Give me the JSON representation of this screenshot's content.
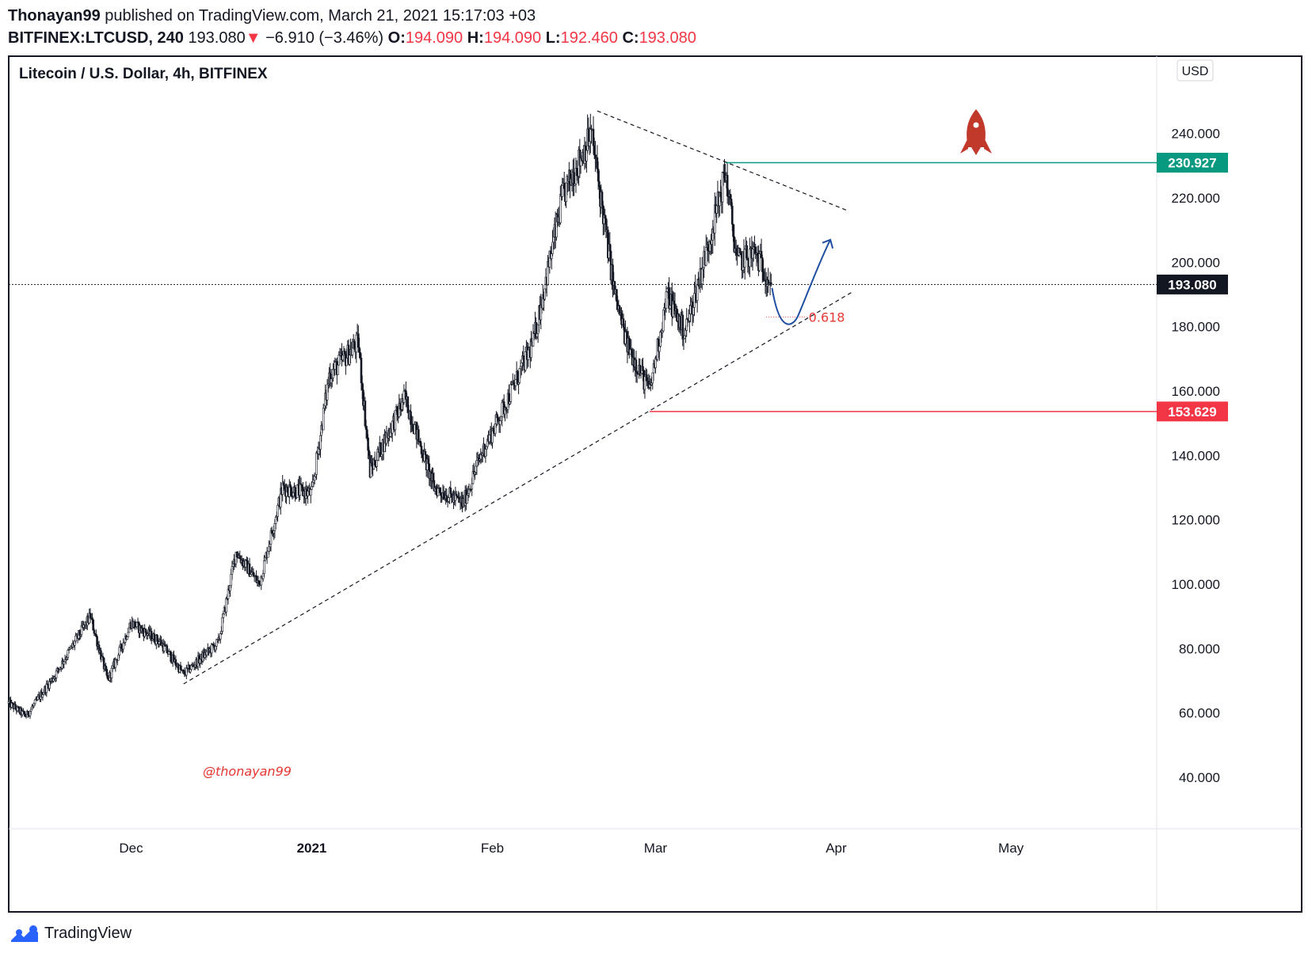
{
  "header": {
    "author": "Thonayan99",
    "published_text": "published on TradingView.com, March 21, 2021 15:17:03 +03",
    "symbol": "BITFINEX:LTCUSD, 240",
    "price": "193.080",
    "change_arrow": "▼",
    "change": "−6.910 (−3.46%)",
    "o_label": "O:",
    "o_value": "194.090",
    "h_label": "H:",
    "h_value": "194.090",
    "l_label": "L:",
    "l_value": "192.460",
    "c_label": "C:",
    "c_value": "193.080"
  },
  "footer": {
    "brand": "TradingView"
  },
  "colors": {
    "candle": "#131722",
    "green_line": "#089981",
    "red_line": "#f23645",
    "fib_red": "#e53935",
    "arrow_blue": "#1e4fa0",
    "rocket": "#c0392b"
  },
  "chart_data": {
    "type": "candlestick",
    "title": "Litecoin / U.S. Dollar, 4h, BITFINEX",
    "currency_label": "USD",
    "x_tick_labels": [
      "Dec",
      "2021",
      "Feb",
      "Mar",
      "Apr",
      "May"
    ],
    "y_tick_labels": [
      "240.000",
      "220.000",
      "200.000",
      "180.000",
      "160.000",
      "140.000",
      "120.000",
      "100.000",
      "80.000",
      "60.000",
      "40.000"
    ],
    "y_ticks": [
      240,
      220,
      200,
      180,
      160,
      140,
      120,
      100,
      80,
      60,
      40
    ],
    "ylim": [
      24,
      264
    ],
    "xlim": [
      "2020-11-10",
      "2021-05-26"
    ],
    "x_ticks": [
      "2020-12-01",
      "2021-01-01",
      "2021-02-01",
      "2021-03-01",
      "2021-04-01",
      "2021-05-01"
    ],
    "price_anchors": [
      {
        "date": "2020-11-10",
        "price": 63
      },
      {
        "date": "2020-11-13",
        "price": 59
      },
      {
        "date": "2020-11-18",
        "price": 72
      },
      {
        "date": "2020-11-24",
        "price": 90
      },
      {
        "date": "2020-11-27",
        "price": 70
      },
      {
        "date": "2020-12-01",
        "price": 88
      },
      {
        "date": "2020-12-06",
        "price": 82
      },
      {
        "date": "2020-12-10",
        "price": 72
      },
      {
        "date": "2020-12-16",
        "price": 82
      },
      {
        "date": "2020-12-19",
        "price": 110
      },
      {
        "date": "2020-12-23",
        "price": 100
      },
      {
        "date": "2020-12-27",
        "price": 130
      },
      {
        "date": "2021-01-01",
        "price": 128
      },
      {
        "date": "2021-01-04",
        "price": 165
      },
      {
        "date": "2021-01-09",
        "price": 175
      },
      {
        "date": "2021-01-11",
        "price": 135
      },
      {
        "date": "2021-01-17",
        "price": 158
      },
      {
        "date": "2021-01-22",
        "price": 130
      },
      {
        "date": "2021-01-27",
        "price": 125
      },
      {
        "date": "2021-01-30",
        "price": 140
      },
      {
        "date": "2021-02-03",
        "price": 155
      },
      {
        "date": "2021-02-08",
        "price": 175
      },
      {
        "date": "2021-02-13",
        "price": 220
      },
      {
        "date": "2021-02-18",
        "price": 240
      },
      {
        "date": "2021-02-22",
        "price": 190
      },
      {
        "date": "2021-02-24",
        "price": 175
      },
      {
        "date": "2021-02-28",
        "price": 160
      },
      {
        "date": "2021-03-03",
        "price": 190
      },
      {
        "date": "2021-03-06",
        "price": 178
      },
      {
        "date": "2021-03-10",
        "price": 205
      },
      {
        "date": "2021-03-13",
        "price": 228
      },
      {
        "date": "2021-03-15",
        "price": 200
      },
      {
        "date": "2021-03-18",
        "price": 203
      },
      {
        "date": "2021-03-21",
        "price": 193.08
      }
    ],
    "annotations": {
      "resistance_level": {
        "value": 230.927,
        "label": "230.927",
        "from": "2021-03-13"
      },
      "support_level": {
        "value": 153.629,
        "label": "153.629",
        "from": "2021-02-28"
      },
      "current_price": {
        "value": 193.08,
        "label": "193.080"
      },
      "fib_label": "0.618",
      "fib_value": 183,
      "lower_trendline": [
        {
          "date": "2020-12-10",
          "price": 69
        },
        {
          "date": "2021-04-04",
          "price": 191
        }
      ],
      "upper_trendline": [
        {
          "date": "2021-02-19",
          "price": 247
        },
        {
          "date": "2021-04-03",
          "price": 216
        }
      ],
      "watermark": "@thonayan99"
    }
  }
}
